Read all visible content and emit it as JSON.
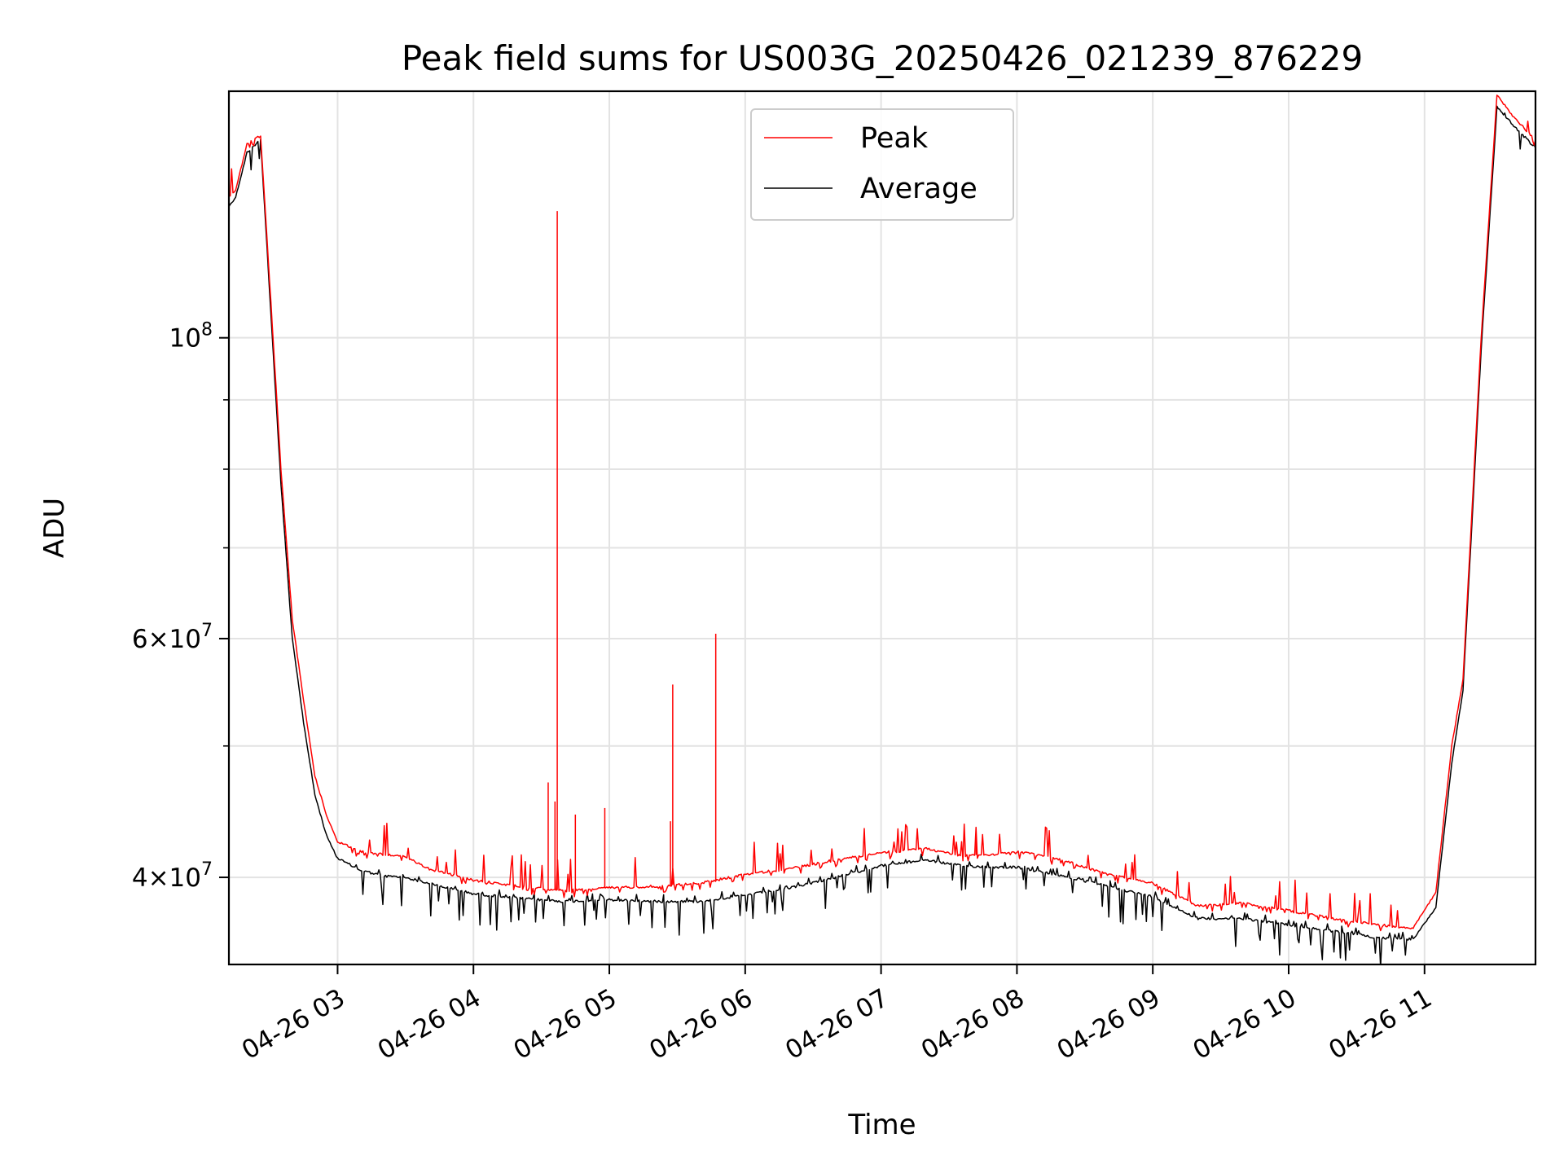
{
  "chart_data": {
    "type": "line",
    "title": "Peak field sums for US003G_20250426_021239_876229",
    "xlabel": "Time",
    "ylabel": "ADU",
    "y_scale": "log",
    "ylim": [
      34500000,
      152000000
    ],
    "xlim": [
      "2025-04-26T02:12",
      "2025-04-26T11:49"
    ],
    "grid": true,
    "legend_position": "upper center",
    "x_ticks": [
      {
        "t": "2025-04-26T03:00",
        "label": "04-26 03"
      },
      {
        "t": "2025-04-26T04:00",
        "label": "04-26 04"
      },
      {
        "t": "2025-04-26T05:00",
        "label": "04-26 05"
      },
      {
        "t": "2025-04-26T06:00",
        "label": "04-26 06"
      },
      {
        "t": "2025-04-26T07:00",
        "label": "04-26 07"
      },
      {
        "t": "2025-04-26T08:00",
        "label": "04-26 08"
      },
      {
        "t": "2025-04-26T09:00",
        "label": "04-26 09"
      },
      {
        "t": "2025-04-26T10:00",
        "label": "04-26 10"
      },
      {
        "t": "2025-04-26T11:00",
        "label": "04-26 11"
      }
    ],
    "y_ticks_major": [
      {
        "v": 40000000,
        "base": "4",
        "exp": "7"
      },
      {
        "v": 60000000,
        "base": "6",
        "exp": "7"
      },
      {
        "v": 100000000,
        "base": "10",
        "exp": "8"
      }
    ],
    "y_ticks_minor": [
      50000000,
      70000000,
      80000000,
      90000000
    ],
    "series": [
      {
        "name": "Peak",
        "color": "#ff0000",
        "points": [
          [
            "2025-04-26T02:12",
            127000000
          ],
          [
            "2025-04-26T02:15",
            128500000
          ],
          [
            "2025-04-26T02:20",
            139000000
          ],
          [
            "2025-04-26T02:26",
            141000000
          ],
          [
            "2025-04-26T02:30",
            110000000
          ],
          [
            "2025-04-26T02:35",
            80000000
          ],
          [
            "2025-04-26T02:40",
            62000000
          ],
          [
            "2025-04-26T02:45",
            54000000
          ],
          [
            "2025-04-26T02:50",
            47500000
          ],
          [
            "2025-04-26T02:55",
            44500000
          ],
          [
            "2025-04-26T03:00",
            42500000
          ],
          [
            "2025-04-26T03:10",
            41800000
          ],
          [
            "2025-04-26T03:20",
            41600000
          ],
          [
            "2025-04-26T03:30",
            41400000
          ],
          [
            "2025-04-26T03:40",
            40600000
          ],
          [
            "2025-04-26T04:00",
            39800000
          ],
          [
            "2025-04-26T04:20",
            39400000
          ],
          [
            "2025-04-26T04:40",
            39100000
          ],
          [
            "2025-04-26T05:00",
            39300000
          ],
          [
            "2025-04-26T05:20",
            39400000
          ],
          [
            "2025-04-26T05:40",
            39600000
          ],
          [
            "2025-04-26T06:00",
            40200000
          ],
          [
            "2025-04-26T06:20",
            40600000
          ],
          [
            "2025-04-26T06:40",
            41200000
          ],
          [
            "2025-04-26T07:00",
            41700000
          ],
          [
            "2025-04-26T07:20",
            42000000
          ],
          [
            "2025-04-26T07:35",
            41500000
          ],
          [
            "2025-04-26T07:50",
            41600000
          ],
          [
            "2025-04-26T08:00",
            41800000
          ],
          [
            "2025-04-26T08:20",
            41200000
          ],
          [
            "2025-04-26T08:40",
            40200000
          ],
          [
            "2025-04-26T09:00",
            39600000
          ],
          [
            "2025-04-26T09:20",
            38100000
          ],
          [
            "2025-04-26T09:40",
            38300000
          ],
          [
            "2025-04-26T10:00",
            37800000
          ],
          [
            "2025-04-26T10:20",
            37300000
          ],
          [
            "2025-04-26T10:40",
            36900000
          ],
          [
            "2025-04-26T10:55",
            36700000
          ],
          [
            "2025-04-26T11:05",
            39000000
          ],
          [
            "2025-04-26T11:12",
            50000000
          ],
          [
            "2025-04-26T11:17",
            56000000
          ],
          [
            "2025-04-26T11:25",
            100000000
          ],
          [
            "2025-04-26T11:32",
            151000000
          ],
          [
            "2025-04-26T11:40",
            145000000
          ],
          [
            "2025-04-26T11:49",
            140000000
          ]
        ],
        "spikes": [
          [
            "2025-04-26T04:33",
            47000000
          ],
          [
            "2025-04-26T04:36",
            45500000
          ],
          [
            "2025-04-26T04:37",
            124000000
          ],
          [
            "2025-04-26T04:45",
            44500000
          ],
          [
            "2025-04-26T04:58",
            45000000
          ],
          [
            "2025-04-26T05:27",
            44000000
          ],
          [
            "2025-04-26T05:28",
            55500000
          ],
          [
            "2025-04-26T05:47",
            60500000
          ],
          [
            "2025-04-26T07:42",
            42800000
          ]
        ]
      },
      {
        "name": "Average",
        "color": "#000000",
        "points": [
          [
            "2025-04-26T02:12",
            125000000
          ],
          [
            "2025-04-26T02:15",
            127000000
          ],
          [
            "2025-04-26T02:20",
            137000000
          ],
          [
            "2025-04-26T02:26",
            140000000
          ],
          [
            "2025-04-26T02:30",
            108000000
          ],
          [
            "2025-04-26T02:35",
            78000000
          ],
          [
            "2025-04-26T02:40",
            60000000
          ],
          [
            "2025-04-26T02:45",
            52000000
          ],
          [
            "2025-04-26T02:50",
            46000000
          ],
          [
            "2025-04-26T02:55",
            43000000
          ],
          [
            "2025-04-26T03:00",
            41300000
          ],
          [
            "2025-04-26T03:10",
            40500000
          ],
          [
            "2025-04-26T03:20",
            40100000
          ],
          [
            "2025-04-26T03:30",
            40000000
          ],
          [
            "2025-04-26T03:40",
            39600000
          ],
          [
            "2025-04-26T04:00",
            38900000
          ],
          [
            "2025-04-26T04:20",
            38600000
          ],
          [
            "2025-04-26T04:40",
            38400000
          ],
          [
            "2025-04-26T05:00",
            38500000
          ],
          [
            "2025-04-26T05:20",
            38400000
          ],
          [
            "2025-04-26T05:40",
            38400000
          ],
          [
            "2025-04-26T06:00",
            38800000
          ],
          [
            "2025-04-26T06:20",
            39300000
          ],
          [
            "2025-04-26T06:40",
            40000000
          ],
          [
            "2025-04-26T07:00",
            40800000
          ],
          [
            "2025-04-26T07:20",
            41200000
          ],
          [
            "2025-04-26T07:35",
            40800000
          ],
          [
            "2025-04-26T07:50",
            40700000
          ],
          [
            "2025-04-26T08:00",
            40700000
          ],
          [
            "2025-04-26T08:20",
            40100000
          ],
          [
            "2025-04-26T08:40",
            39400000
          ],
          [
            "2025-04-26T09:00",
            38700000
          ],
          [
            "2025-04-26T09:20",
            37300000
          ],
          [
            "2025-04-26T09:40",
            37300000
          ],
          [
            "2025-04-26T10:00",
            36900000
          ],
          [
            "2025-04-26T10:20",
            36500000
          ],
          [
            "2025-04-26T10:40",
            36100000
          ],
          [
            "2025-04-26T10:55",
            36000000
          ],
          [
            "2025-04-26T11:05",
            38000000
          ],
          [
            "2025-04-26T11:12",
            48500000
          ],
          [
            "2025-04-26T11:17",
            55000000
          ],
          [
            "2025-04-26T11:25",
            98000000
          ],
          [
            "2025-04-26T11:32",
            148000000
          ],
          [
            "2025-04-26T11:40",
            143000000
          ],
          [
            "2025-04-26T11:49",
            138000000
          ]
        ]
      }
    ]
  }
}
